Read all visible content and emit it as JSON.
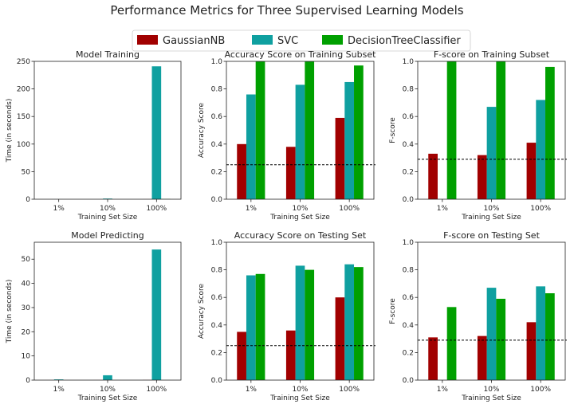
{
  "chart_data": {
    "type": "bar",
    "suptitle": "Performance Metrics for Three Supervised Learning Models",
    "legend": [
      {
        "name": "GaussianNB",
        "color": "#a10000"
      },
      {
        "name": "SVC",
        "color": "#0fa0a0"
      },
      {
        "name": "DecisionTreeClassifier",
        "color": "#00a000"
      }
    ],
    "subplots": [
      {
        "id": "train-time",
        "title": "Model Training",
        "xlabel": "Training Set Size",
        "ylabel": "Time (in seconds)",
        "categories": [
          "1%",
          "10%",
          "100%"
        ],
        "ylim": [
          0,
          250
        ],
        "yticks": [
          "0",
          "50",
          "100",
          "150",
          "200",
          "250"
        ],
        "ytick_values": [
          0,
          50,
          100,
          150,
          200,
          250
        ],
        "series": [
          {
            "name": "GaussianNB",
            "values": [
              0.003,
              0.01,
              0.1
            ]
          },
          {
            "name": "SVC",
            "values": [
              0.05,
              1.2,
              241
            ]
          },
          {
            "name": "DecisionTreeClassifier",
            "values": [
              0.003,
              0.03,
              0.4
            ]
          }
        ],
        "threshold": null
      },
      {
        "id": "acc-train",
        "title": "Accuracy Score on Training Subset",
        "xlabel": "Training Set Size",
        "ylabel": "Accuracy Score",
        "categories": [
          "1%",
          "10%",
          "100%"
        ],
        "ylim": [
          0,
          1
        ],
        "yticks": [
          "0.0",
          "0.2",
          "0.4",
          "0.6",
          "0.8",
          "1.0"
        ],
        "ytick_values": [
          0,
          0.2,
          0.4,
          0.6,
          0.8,
          1.0
        ],
        "series": [
          {
            "name": "GaussianNB",
            "values": [
              0.4,
              0.38,
              0.59
            ]
          },
          {
            "name": "SVC",
            "values": [
              0.76,
              0.83,
              0.85
            ]
          },
          {
            "name": "DecisionTreeClassifier",
            "values": [
              1.0,
              1.0,
              0.97
            ]
          }
        ],
        "threshold": 0.25
      },
      {
        "id": "f-train",
        "title": "F-score on Training Subset",
        "xlabel": "Training Set Size",
        "ylabel": "F-score",
        "categories": [
          "1%",
          "10%",
          "100%"
        ],
        "ylim": [
          0,
          1
        ],
        "yticks": [
          "0.0",
          "0.2",
          "0.4",
          "0.6",
          "0.8",
          "1.0"
        ],
        "ytick_values": [
          0,
          0.2,
          0.4,
          0.6,
          0.8,
          1.0
        ],
        "series": [
          {
            "name": "GaussianNB",
            "values": [
              0.33,
              0.32,
              0.41
            ]
          },
          {
            "name": "SVC",
            "values": [
              0.0,
              0.67,
              0.72
            ]
          },
          {
            "name": "DecisionTreeClassifier",
            "values": [
              1.0,
              1.0,
              0.96
            ]
          }
        ],
        "threshold": 0.29
      },
      {
        "id": "predict-time",
        "title": "Model Predicting",
        "xlabel": "Training Set Size",
        "ylabel": "Time (in seconds)",
        "categories": [
          "1%",
          "10%",
          "100%"
        ],
        "ylim": [
          0,
          57
        ],
        "yticks": [
          "0",
          "10",
          "20",
          "30",
          "40",
          "50"
        ],
        "ytick_values": [
          0,
          10,
          20,
          30,
          40,
          50
        ],
        "series": [
          {
            "name": "GaussianNB",
            "values": [
              0.01,
              0.02,
              0.05
            ]
          },
          {
            "name": "SVC",
            "values": [
              0.3,
              2.0,
              54
            ]
          },
          {
            "name": "DecisionTreeClassifier",
            "values": [
              0.005,
              0.01,
              0.02
            ]
          }
        ],
        "threshold": null
      },
      {
        "id": "acc-test",
        "title": "Accuracy Score on Testing Set",
        "xlabel": "Training Set Size",
        "ylabel": "Accuracy Score",
        "categories": [
          "1%",
          "10%",
          "100%"
        ],
        "ylim": [
          0,
          1
        ],
        "yticks": [
          "0.0",
          "0.2",
          "0.4",
          "0.6",
          "0.8",
          "1.0"
        ],
        "ytick_values": [
          0,
          0.2,
          0.4,
          0.6,
          0.8,
          1.0
        ],
        "series": [
          {
            "name": "GaussianNB",
            "values": [
              0.35,
              0.36,
              0.6
            ]
          },
          {
            "name": "SVC",
            "values": [
              0.76,
              0.83,
              0.84
            ]
          },
          {
            "name": "DecisionTreeClassifier",
            "values": [
              0.77,
              0.8,
              0.82
            ]
          }
        ],
        "threshold": 0.25
      },
      {
        "id": "f-test",
        "title": "F-score on Testing Set",
        "xlabel": "Training Set Size",
        "ylabel": "F-score",
        "categories": [
          "1%",
          "10%",
          "100%"
        ],
        "ylim": [
          0,
          1
        ],
        "yticks": [
          "0.0",
          "0.2",
          "0.4",
          "0.6",
          "0.8",
          "1.0"
        ],
        "ytick_values": [
          0,
          0.2,
          0.4,
          0.6,
          0.8,
          1.0
        ],
        "series": [
          {
            "name": "GaussianNB",
            "values": [
              0.31,
              0.32,
              0.42
            ]
          },
          {
            "name": "SVC",
            "values": [
              0.0,
              0.67,
              0.68
            ]
          },
          {
            "name": "DecisionTreeClassifier",
            "values": [
              0.53,
              0.59,
              0.63
            ]
          }
        ],
        "threshold": 0.29
      }
    ]
  }
}
